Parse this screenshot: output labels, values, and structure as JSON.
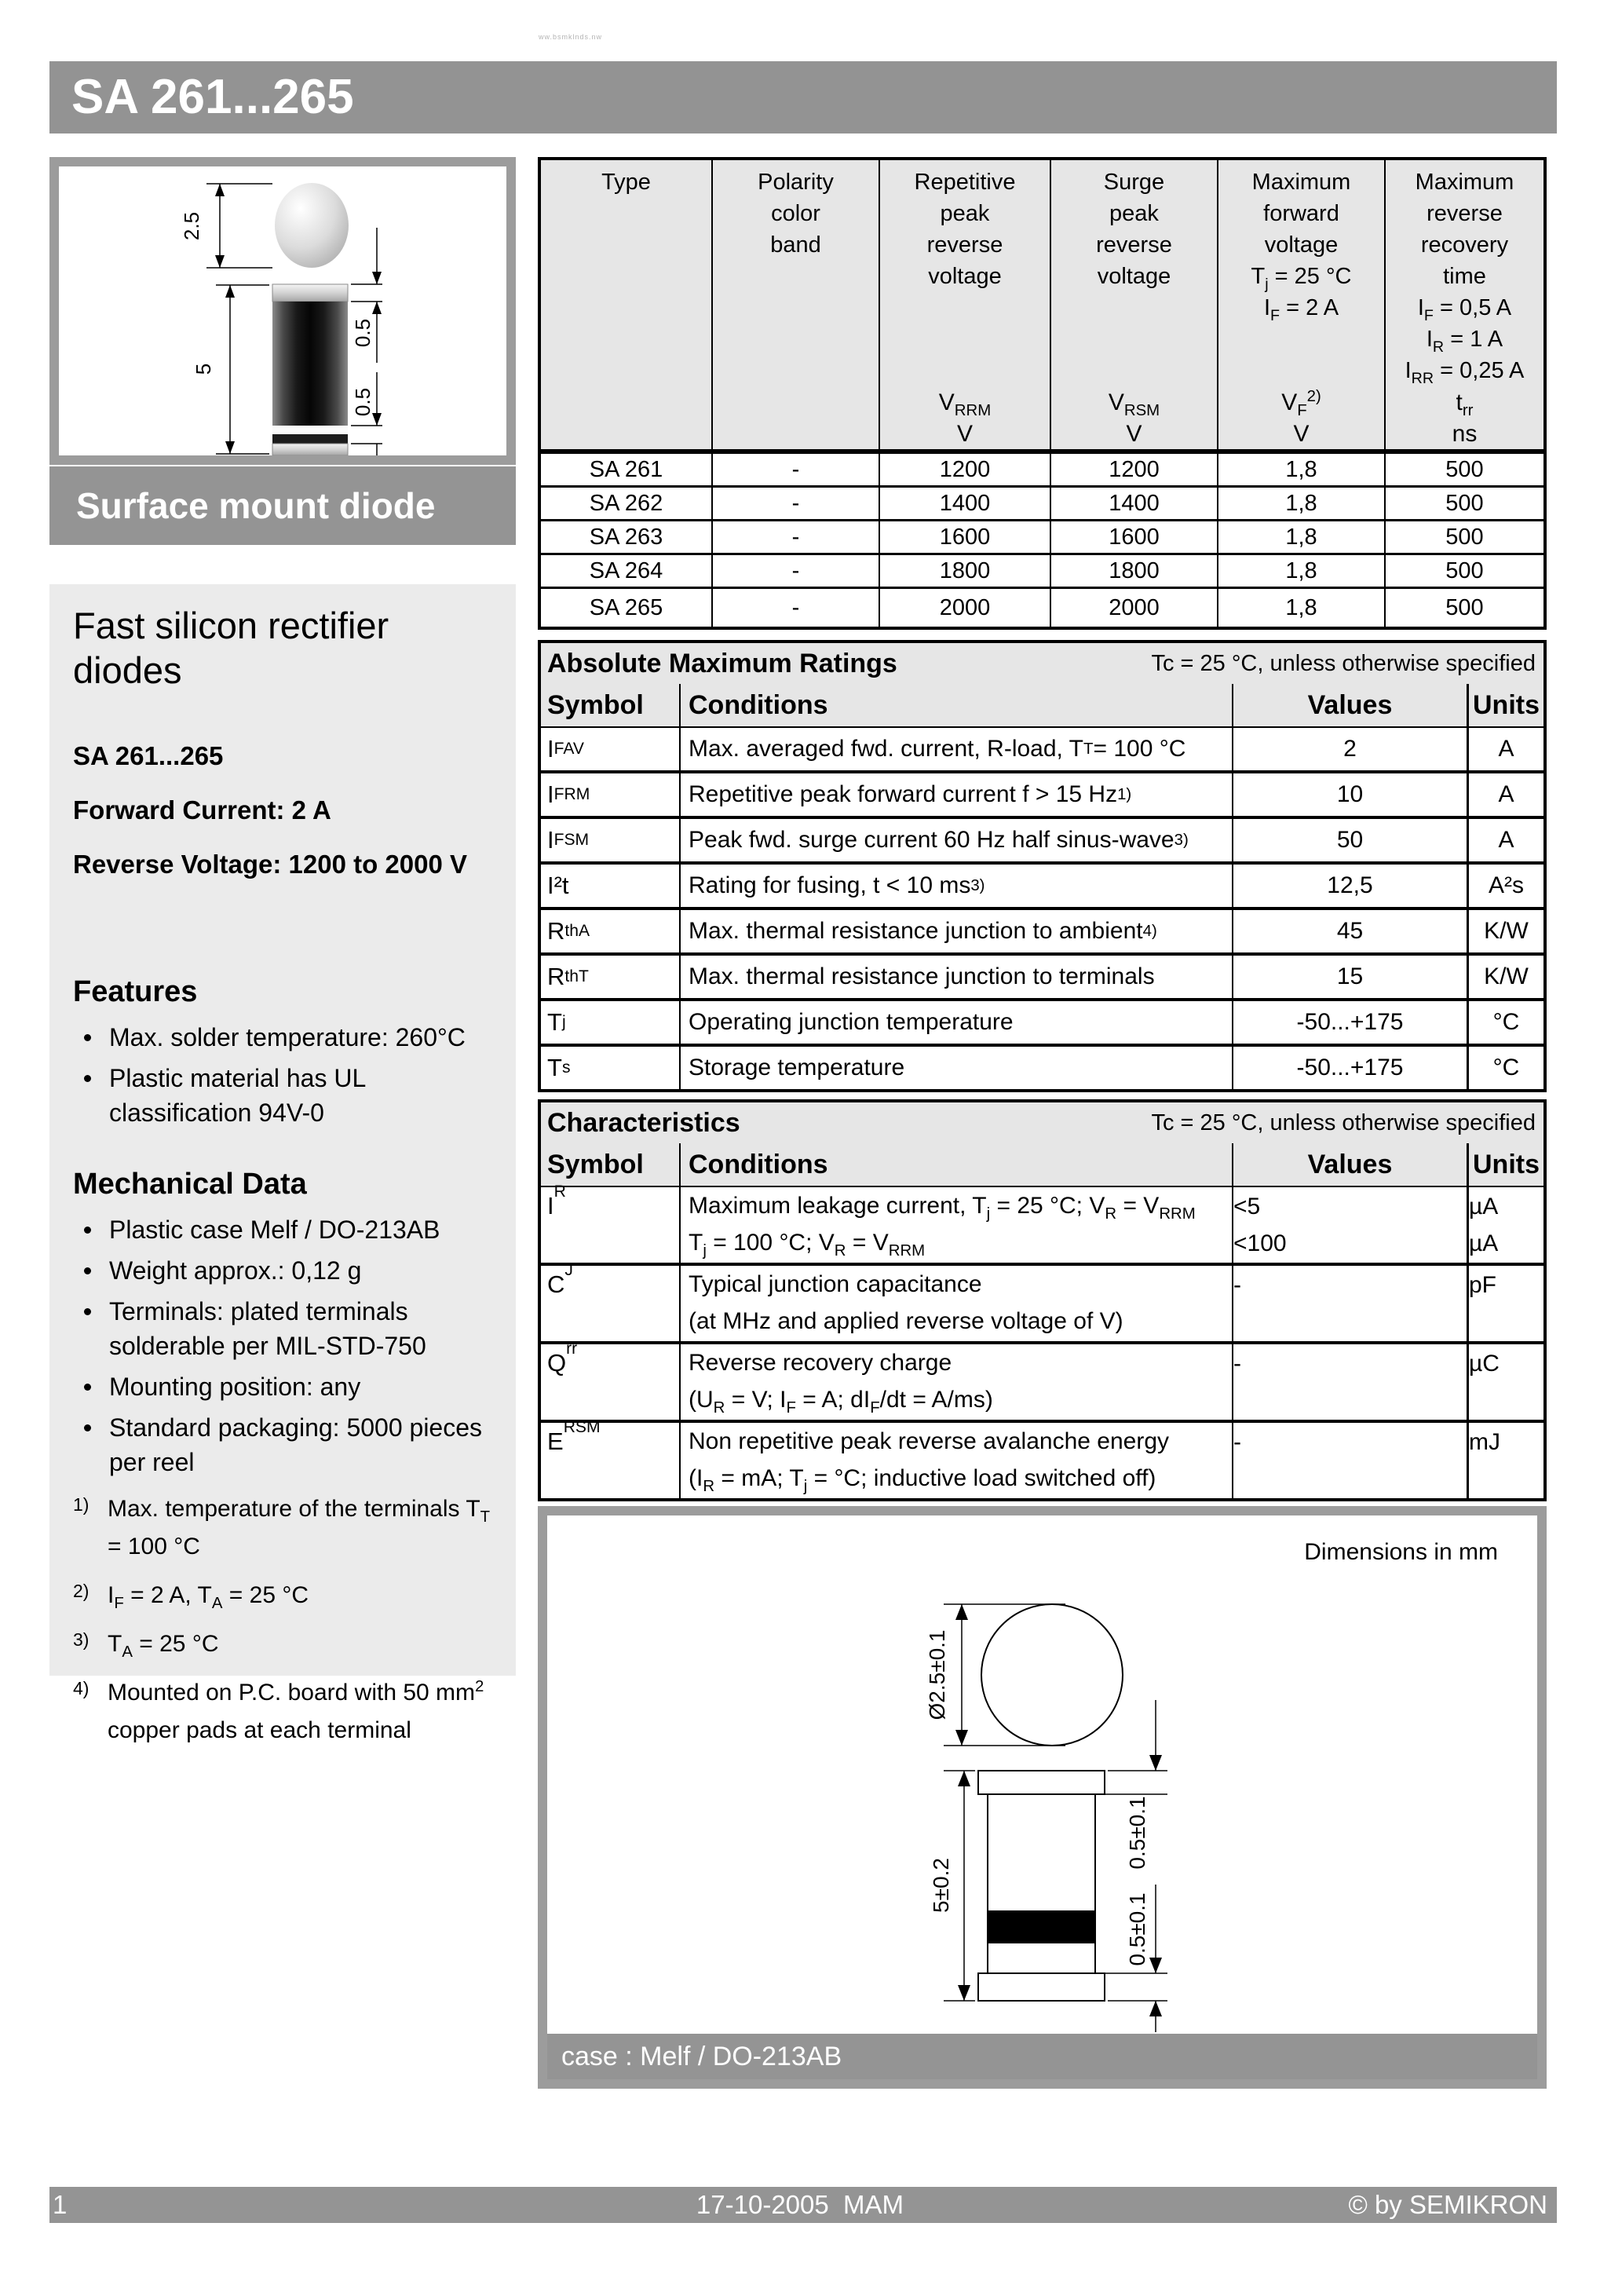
{
  "page": {
    "watermark": "ww.bsmklnds.nw"
  },
  "header": {
    "title": "SA 261...265"
  },
  "photo": {
    "dim_ball": "2.5",
    "dim_body": "5",
    "dim_cap_top": "0.5",
    "dim_cap_bottom": "0.5"
  },
  "banner": {
    "label": "Surface mount diode"
  },
  "sidebar": {
    "title": "Fast silicon rectifier diodes",
    "subtitle": "SA 261...265",
    "spec_forward": "Forward Current: 2 A",
    "spec_reverse": "Reverse Voltage: 1200 to 2000 V",
    "features_heading": "Features",
    "features": [
      "Max. solder temperature: 260°C",
      "Plastic material has UL classification 94V-0"
    ],
    "mech_heading": "Mechanical Data",
    "mech": [
      "Plastic case Melf / DO-213AB",
      "Weight approx.: 0,12 g",
      "Terminals: plated terminals solderable per MIL-STD-750",
      "Mounting position: any",
      "Standard packaging: 5000 pieces per reel"
    ],
    "footnotes": [
      {
        "marker": "1)",
        "text": [
          {
            "t": "Max. temperature of the terminals T"
          },
          {
            "t": "T",
            "s": "sub"
          },
          {
            "t": " = 100 °C"
          }
        ]
      },
      {
        "marker": "2)",
        "text": [
          {
            "t": "I"
          },
          {
            "t": "F",
            "s": "sub"
          },
          {
            "t": " = 2 A, T"
          },
          {
            "t": "A",
            "s": "sub"
          },
          {
            "t": " = 25 °C"
          }
        ]
      },
      {
        "marker": "3)",
        "text": [
          {
            "t": "T"
          },
          {
            "t": "A",
            "s": "sub"
          },
          {
            "t": " = 25 °C"
          }
        ]
      },
      {
        "marker": "4)",
        "text": [
          {
            "t": "Mounted on P.C. board with 50 mm"
          },
          {
            "t": "2",
            "s": "sup"
          },
          {
            "t": " copper pads at each terminal"
          }
        ]
      }
    ]
  },
  "type_table": {
    "columns": [
      {
        "lines": [
          [
            {
              "t": "Type"
            }
          ]
        ],
        "symbol": [],
        "unit": ""
      },
      {
        "lines": [
          [
            {
              "t": "Polarity"
            }
          ],
          [
            {
              "t": "color"
            }
          ],
          [
            {
              "t": "band"
            }
          ]
        ],
        "symbol": [],
        "unit": ""
      },
      {
        "lines": [
          [
            {
              "t": "Repetitive"
            }
          ],
          [
            {
              "t": "peak"
            }
          ],
          [
            {
              "t": "reverse"
            }
          ],
          [
            {
              "t": "voltage"
            }
          ]
        ],
        "symbol": [
          {
            "t": "V"
          },
          {
            "t": "RRM",
            "s": "sub"
          }
        ],
        "unit": "V"
      },
      {
        "lines": [
          [
            {
              "t": "Surge"
            }
          ],
          [
            {
              "t": "peak"
            }
          ],
          [
            {
              "t": "reverse"
            }
          ],
          [
            {
              "t": "voltage"
            }
          ]
        ],
        "symbol": [
          {
            "t": "V"
          },
          {
            "t": "RSM",
            "s": "sub"
          }
        ],
        "unit": "V"
      },
      {
        "lines": [
          [
            {
              "t": "Maximum"
            }
          ],
          [
            {
              "t": "forward"
            }
          ],
          [
            {
              "t": "voltage"
            }
          ],
          [
            {
              "t": "T"
            },
            {
              "t": "j",
              "s": "sub"
            },
            {
              "t": " = 25 °C"
            }
          ],
          [
            {
              "t": "I"
            },
            {
              "t": "F",
              "s": "sub"
            },
            {
              "t": " = 2 A"
            }
          ]
        ],
        "symbol": [
          {
            "t": "V"
          },
          {
            "t": "F",
            "s": "sub"
          },
          {
            "t": "2)",
            "s": "sup"
          }
        ],
        "unit": "V"
      },
      {
        "lines": [
          [
            {
              "t": "Maximum"
            }
          ],
          [
            {
              "t": "reverse"
            }
          ],
          [
            {
              "t": "recovery"
            }
          ],
          [
            {
              "t": "time"
            }
          ],
          [
            {
              "t": "I"
            },
            {
              "t": "F",
              "s": "sub"
            },
            {
              "t": " = 0,5 A"
            }
          ],
          [
            {
              "t": "I"
            },
            {
              "t": "R",
              "s": "sub"
            },
            {
              "t": " = 1 A"
            }
          ],
          [
            {
              "t": "I"
            },
            {
              "t": "RR",
              "s": "sub"
            },
            {
              "t": " = 0,25 A"
            }
          ]
        ],
        "symbol": [
          {
            "t": "t"
          },
          {
            "t": "rr",
            "s": "sub"
          }
        ],
        "unit": "ns"
      }
    ],
    "rows": [
      {
        "type": "SA 261",
        "polarity": "-",
        "vrrm": "1200",
        "vrsm": "1200",
        "vf": "1,8",
        "trr": "500"
      },
      {
        "type": "SA 262",
        "polarity": "-",
        "vrrm": "1400",
        "vrsm": "1400",
        "vf": "1,8",
        "trr": "500"
      },
      {
        "type": "SA 263",
        "polarity": "-",
        "vrrm": "1600",
        "vrsm": "1600",
        "vf": "1,8",
        "trr": "500"
      },
      {
        "type": "SA 264",
        "polarity": "-",
        "vrrm": "1800",
        "vrsm": "1800",
        "vf": "1,8",
        "trr": "500"
      },
      {
        "type": "SA 265",
        "polarity": "-",
        "vrrm": "2000",
        "vrsm": "2000",
        "vf": "1,8",
        "trr": "500"
      }
    ]
  },
  "amr_table": {
    "title": "Absolute Maximum Ratings",
    "note": "Tc = 25 °C, unless otherwise specified",
    "headers": {
      "symbol": "Symbol",
      "conditions": "Conditions",
      "values": "Values",
      "units": "Units"
    },
    "rows": [
      {
        "symbol": [
          {
            "t": "I"
          },
          {
            "t": "FAV",
            "s": "sub"
          }
        ],
        "cond": [
          {
            "t": "Max. averaged fwd. current, R-load, T"
          },
          {
            "t": "T",
            "s": "sub"
          },
          {
            "t": " = 100 °C"
          }
        ],
        "value": "2",
        "unit": "A"
      },
      {
        "symbol": [
          {
            "t": "I"
          },
          {
            "t": "FRM",
            "s": "sub"
          }
        ],
        "cond": [
          {
            "t": "Repetitive peak forward current f > 15 Hz"
          },
          {
            "t": "1)",
            "s": "sup"
          }
        ],
        "value": "10",
        "unit": "A"
      },
      {
        "symbol": [
          {
            "t": "I"
          },
          {
            "t": "FSM",
            "s": "sub"
          }
        ],
        "cond": [
          {
            "t": "Peak fwd. surge current 60 Hz half sinus-wave "
          },
          {
            "t": "3)",
            "s": "sup"
          }
        ],
        "value": "50",
        "unit": "A"
      },
      {
        "symbol": [
          {
            "t": "I²t"
          }
        ],
        "cond": [
          {
            "t": "Rating for fusing, t < 10 ms "
          },
          {
            "t": "3)",
            "s": "sup"
          }
        ],
        "value": "12,5",
        "unit": "A²s"
      },
      {
        "symbol": [
          {
            "t": "R"
          },
          {
            "t": "thA",
            "s": "sub"
          }
        ],
        "cond": [
          {
            "t": "Max. thermal resistance junction to ambient "
          },
          {
            "t": "4)",
            "s": "sup"
          }
        ],
        "value": "45",
        "unit": "K/W"
      },
      {
        "symbol": [
          {
            "t": "R"
          },
          {
            "t": "thT",
            "s": "sub"
          }
        ],
        "cond": [
          {
            "t": "Max. thermal resistance junction to terminals"
          }
        ],
        "value": "15",
        "unit": "K/W"
      },
      {
        "symbol": [
          {
            "t": "T"
          },
          {
            "t": "j",
            "s": "sub"
          }
        ],
        "cond": [
          {
            "t": "Operating junction temperature"
          }
        ],
        "value": "-50...+175",
        "unit": "°C"
      },
      {
        "symbol": [
          {
            "t": "T"
          },
          {
            "t": "s",
            "s": "sub"
          }
        ],
        "cond": [
          {
            "t": "Storage temperature"
          }
        ],
        "value": "-50...+175",
        "unit": "°C"
      }
    ]
  },
  "char_table": {
    "title": "Characteristics",
    "note": "Tc = 25 °C, unless otherwise specified",
    "headers": {
      "symbol": "Symbol",
      "conditions": "Conditions",
      "values": "Values",
      "units": "Units"
    },
    "rows": [
      {
        "symbol": [
          {
            "t": "I"
          },
          {
            "t": "R",
            "s": "sub"
          }
        ],
        "lines": [
          [
            {
              "t": "Maximum leakage current, T"
            },
            {
              "t": "j",
              "s": "sub"
            },
            {
              "t": " = 25 °C; V"
            },
            {
              "t": "R",
              "s": "sub"
            },
            {
              "t": " = V"
            },
            {
              "t": "RRM",
              "s": "sub"
            }
          ],
          [
            {
              "t": "T"
            },
            {
              "t": "j",
              "s": "sub"
            },
            {
              "t": " = 100 °C; V"
            },
            {
              "t": "R",
              "s": "sub"
            },
            {
              "t": " = V"
            },
            {
              "t": "RRM",
              "s": "sub"
            }
          ]
        ],
        "values": [
          "<5",
          "<100"
        ],
        "units": [
          "µA",
          "µA"
        ]
      },
      {
        "symbol": [
          {
            "t": "C"
          },
          {
            "t": "J",
            "s": "sub"
          }
        ],
        "lines": [
          [
            {
              "t": "Typical junction capacitance"
            }
          ],
          [
            {
              "t": "(at MHz and applied reverse voltage of V)"
            }
          ]
        ],
        "values": [
          "-",
          ""
        ],
        "units": [
          "pF",
          ""
        ]
      },
      {
        "symbol": [
          {
            "t": "Q"
          },
          {
            "t": "rr",
            "s": "sub"
          }
        ],
        "lines": [
          [
            {
              "t": "Reverse recovery charge"
            }
          ],
          [
            {
              "t": "(U"
            },
            {
              "t": "R",
              "s": "sub"
            },
            {
              "t": " = V; I"
            },
            {
              "t": "F",
              "s": "sub"
            },
            {
              "t": " = A; dI"
            },
            {
              "t": "F",
              "s": "sub"
            },
            {
              "t": "/dt = A/ms)"
            }
          ]
        ],
        "values": [
          "-",
          ""
        ],
        "units": [
          "µC",
          ""
        ]
      },
      {
        "symbol": [
          {
            "t": "E"
          },
          {
            "t": "RSM",
            "s": "sub"
          }
        ],
        "lines": [
          [
            {
              "t": "Non repetitive peak reverse avalanche energy"
            }
          ],
          [
            {
              "t": "(I"
            },
            {
              "t": "R",
              "s": "sub"
            },
            {
              "t": " = mA; T"
            },
            {
              "t": "j",
              "s": "sub"
            },
            {
              "t": " = °C; inductive load switched off)"
            }
          ]
        ],
        "values": [
          "-",
          ""
        ],
        "units": [
          "mJ",
          ""
        ]
      }
    ]
  },
  "dims": {
    "note": "Dimensions in mm",
    "diameter": "Ø2.5±0.1",
    "length": "5±0.2",
    "cap_top": "0.5±0.1",
    "cap_bottom": "0.5±0.1",
    "case_label": "case : Melf / DO-213AB"
  },
  "footer": {
    "page": "1",
    "date": "17-10-2005  MAM",
    "copyright": "© by SEMIKRON"
  }
}
